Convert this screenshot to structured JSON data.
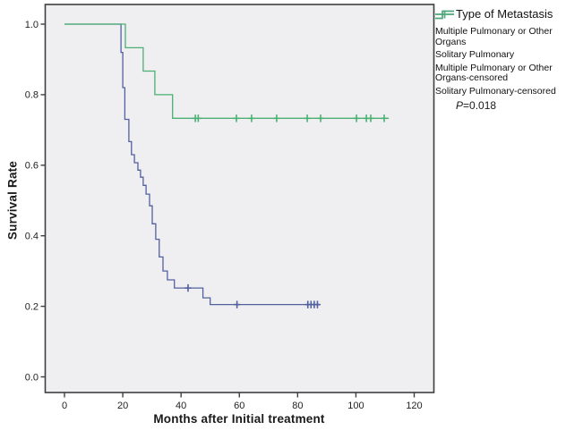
{
  "chart_data": {
    "type": "line",
    "subtype": "kaplan-meier-step",
    "title": "",
    "xlabel": "Months after Initial treatment",
    "ylabel": "Survival Rate",
    "x_ticks": [
      0,
      20,
      40,
      60,
      80,
      100,
      120
    ],
    "y_ticks": [
      "0.0",
      "0.2",
      "0.4",
      "0.6",
      "0.8",
      "1.0"
    ],
    "xlim": [
      -6.5,
      126.5
    ],
    "ylim": [
      -0.05,
      1.05
    ],
    "grid": "off",
    "legend_position": "right",
    "series": [
      {
        "name": "Multiple Pulmonary or Other Organs",
        "color": "#5360a0",
        "start": [
          0,
          1.0
        ],
        "steps": [
          [
            19.4,
            0.92
          ],
          [
            20.0,
            0.82
          ],
          [
            20.7,
            0.73
          ],
          [
            22.1,
            0.667
          ],
          [
            23.0,
            0.63
          ],
          [
            24.0,
            0.607
          ],
          [
            25.2,
            0.586
          ],
          [
            26.1,
            0.566
          ],
          [
            27.0,
            0.543
          ],
          [
            28.0,
            0.518
          ],
          [
            29.2,
            0.485
          ],
          [
            30.1,
            0.434
          ],
          [
            31.3,
            0.39
          ],
          [
            32.5,
            0.34
          ],
          [
            33.8,
            0.3
          ],
          [
            35.3,
            0.275
          ],
          [
            37.7,
            0.252
          ],
          [
            47.5,
            0.224
          ],
          [
            50.0,
            0.205
          ]
        ],
        "end_month": 87.8,
        "censored": [
          [
            42.4,
            0.252
          ],
          [
            59.2,
            0.205
          ],
          [
            83.5,
            0.205
          ],
          [
            84.6,
            0.205
          ],
          [
            85.7,
            0.205
          ],
          [
            86.8,
            0.205
          ]
        ]
      },
      {
        "name": "Solitary Pulmonary",
        "color": "#4ab073",
        "start": [
          0,
          1.0
        ],
        "steps": [
          [
            20.9,
            0.933
          ],
          [
            27.0,
            0.867
          ],
          [
            31.0,
            0.8
          ],
          [
            37.1,
            0.733
          ]
        ],
        "end_month": 111.3,
        "censored": [
          [
            44.9,
            0.733
          ],
          [
            45.9,
            0.733
          ],
          [
            59.0,
            0.733
          ],
          [
            64.2,
            0.733
          ],
          [
            72.8,
            0.733
          ],
          [
            83.3,
            0.733
          ],
          [
            87.9,
            0.733
          ],
          [
            100.2,
            0.733
          ],
          [
            103.6,
            0.733
          ],
          [
            105.1,
            0.733
          ],
          [
            109.7,
            0.733
          ]
        ]
      }
    ],
    "annotations": [
      "P=0.018"
    ]
  },
  "legend": {
    "title": "Type of Metastasis",
    "items": [
      {
        "label": "Multiple Pulmonary or Other Organs",
        "symbol": "step",
        "color": "#5360a0"
      },
      {
        "label": "Solitary Pulmonary",
        "symbol": "step",
        "color": "#4ab073"
      },
      {
        "label": "Multiple Pulmonary or Other Organs-censored",
        "symbol": "plus",
        "color": "#5360a0"
      },
      {
        "label": "Solitary Pulmonary-censored",
        "symbol": "plus",
        "color": "#4ab073"
      }
    ],
    "p_italic": "P",
    "p_rest": "=0.018"
  },
  "colors": {
    "plot_background": "#efeff1",
    "frame": "#3f3f3f",
    "tick_text": "#222222"
  }
}
